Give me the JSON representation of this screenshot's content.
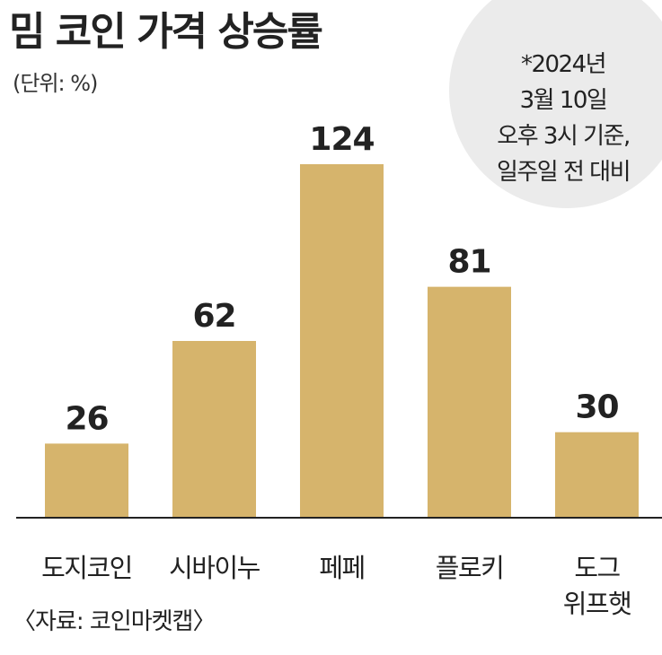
{
  "header": {
    "title": "밈 코인 가격 상승률",
    "unit": "(단위: %)"
  },
  "note": {
    "lines": [
      "*2024년",
      "3월 10일",
      "오후 3시 기준,",
      "일주일 전 대비"
    ]
  },
  "source": "〈자료: 코인마켓캡〉",
  "colors": {
    "bar": "#d6b46c",
    "axis": "#222222",
    "note_bg": "#ebebeb"
  },
  "chart_data": {
    "type": "bar",
    "title": "밈 코인 가격 상승률",
    "ylabel": "(단위: %)",
    "xlabel": "",
    "categories": [
      [
        "도지코인"
      ],
      [
        "시바이누"
      ],
      [
        "페페"
      ],
      [
        "플로키"
      ],
      [
        "도그",
        "위프햇"
      ]
    ],
    "values": [
      26,
      62,
      124,
      81,
      30
    ],
    "data_labels": [
      "26",
      "62",
      "124",
      "81",
      "30"
    ],
    "ylim": [
      0,
      124
    ],
    "grid": false,
    "legend": "none"
  }
}
